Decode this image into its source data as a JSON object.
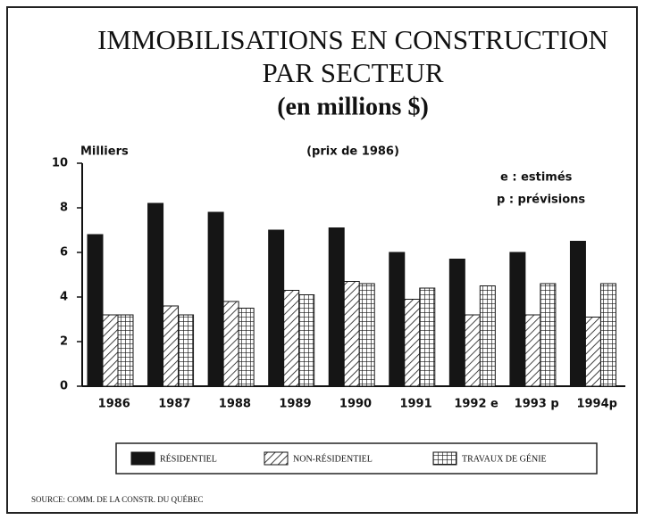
{
  "chart_data": {
    "type": "bar",
    "title": [
      "IMMOBILISATIONS EN CONSTRUCTION",
      "PAR SECTEUR"
    ],
    "subtitle": "(en millions $)",
    "ylabel": "Milliers",
    "note": "(prix de 1986)",
    "annotations": [
      "e : estimés",
      "p : prévisions"
    ],
    "source": "SOURCE: COMM. DE LA CONSTR. DU QUÉBEC",
    "categories": [
      "1986",
      "1987",
      "1988",
      "1989",
      "1990",
      "1991",
      "1992 e",
      "1993 p",
      "1994p"
    ],
    "series": [
      {
        "name": "RÉSIDENTIEL",
        "color": "#151515",
        "pattern": "solid",
        "values": [
          6.8,
          8.2,
          7.8,
          7.0,
          7.1,
          6.0,
          5.7,
          6.0,
          6.5
        ]
      },
      {
        "name": "NON-RÉSIDENTIEL",
        "color": "#151515",
        "pattern": "hatch",
        "values": [
          3.2,
          3.6,
          3.8,
          4.3,
          4.7,
          3.9,
          3.2,
          3.2,
          3.1
        ]
      },
      {
        "name": "TRAVAUX DE GÉNIE",
        "color": "#151515",
        "pattern": "grid",
        "values": [
          3.2,
          3.2,
          3.5,
          4.1,
          4.6,
          4.4,
          4.5,
          4.6,
          4.6
        ]
      }
    ],
    "ylim": [
      0,
      10
    ],
    "yticks": [
      0,
      2,
      4,
      6,
      8,
      10
    ],
    "grid": false
  }
}
